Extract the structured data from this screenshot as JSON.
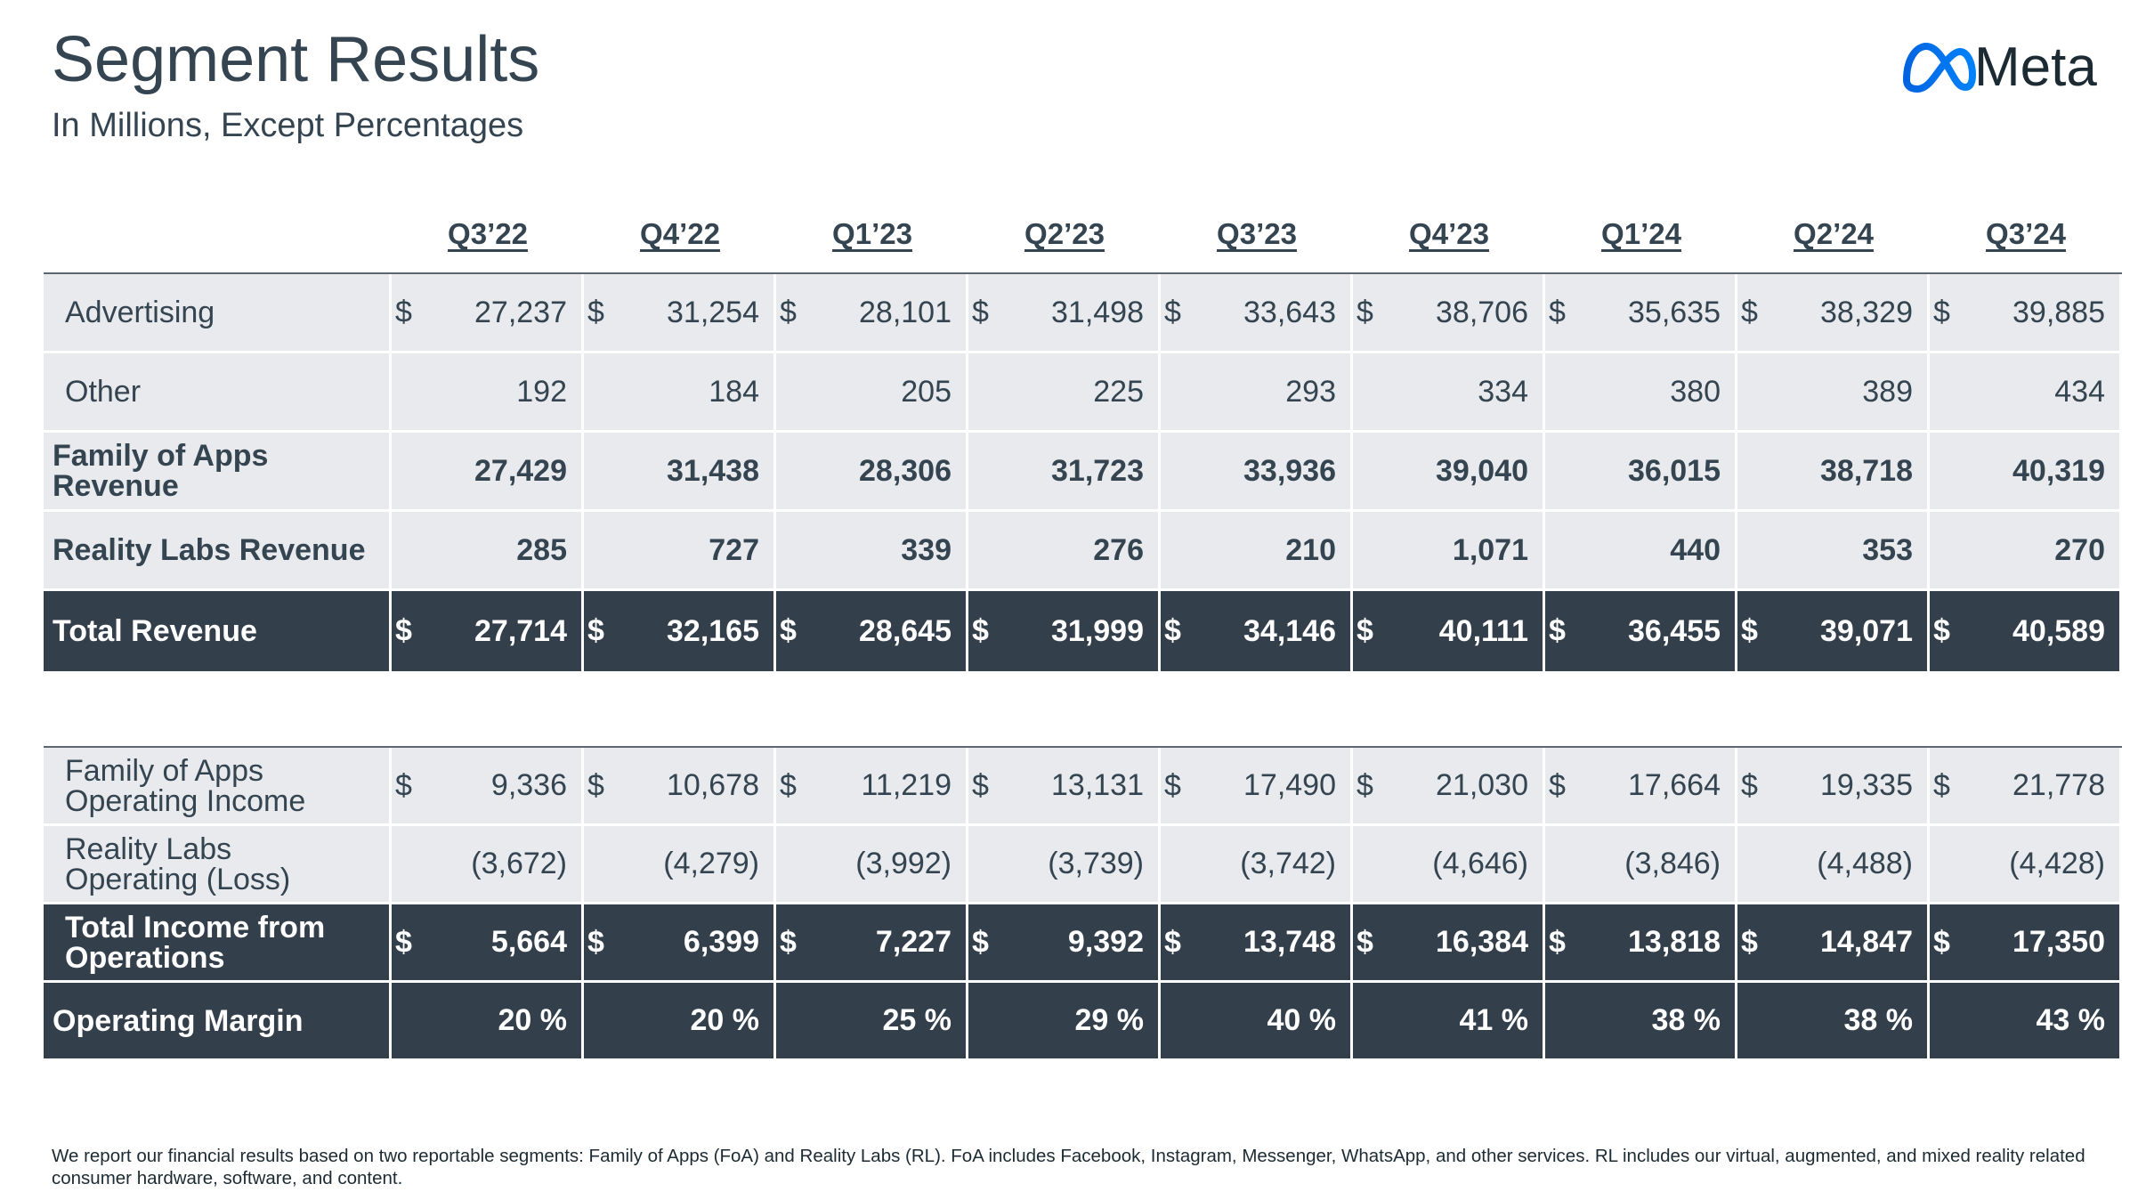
{
  "header": {
    "title": "Segment Results",
    "subtitle": "In Millions, Except Percentages",
    "logo_text": "Meta"
  },
  "table": {
    "columns": [
      "Q3’22",
      "Q4’22",
      "Q1’23",
      "Q2’23",
      "Q3’23",
      "Q4’23",
      "Q1’24",
      "Q2’24",
      "Q3’24"
    ],
    "sections": [
      {
        "rows": [
          {
            "label": "Advertising",
            "currency_symbol": "$",
            "values": [
              "27,237",
              "31,254",
              "28,101",
              "31,498",
              "33,643",
              "38,706",
              "35,635",
              "38,329",
              "39,885"
            ]
          },
          {
            "label": "Other",
            "values": [
              "192",
              "184",
              "205",
              "225",
              "293",
              "334",
              "380",
              "389",
              "434"
            ]
          },
          {
            "label": "Family of Apps\nRevenue",
            "values": [
              "27,429",
              "31,438",
              "28,306",
              "31,723",
              "33,936",
              "39,040",
              "36,015",
              "38,718",
              "40,319"
            ]
          },
          {
            "label": "Reality Labs Revenue",
            "values": [
              "285",
              "727",
              "339",
              "276",
              "210",
              "1,071",
              "440",
              "353",
              "270"
            ]
          },
          {
            "label": "Total Revenue",
            "currency_symbol": "$",
            "values": [
              "27,714",
              "32,165",
              "28,645",
              "31,999",
              "34,146",
              "40,111",
              "36,455",
              "39,071",
              "40,589"
            ]
          }
        ]
      },
      {
        "rows": [
          {
            "label": "Family of Apps\nOperating Income",
            "currency_symbol": "$",
            "values": [
              "9,336",
              "10,678",
              "11,219",
              "13,131",
              "17,490",
              "21,030",
              "17,664",
              "19,335",
              "21,778"
            ]
          },
          {
            "label": "Reality Labs\nOperating (Loss)",
            "values": [
              "(3,672)",
              "(4,279)",
              "(3,992)",
              "(3,739)",
              "(3,742)",
              "(4,646)",
              "(3,846)",
              "(4,488)",
              "(4,428)"
            ]
          },
          {
            "label": "Total Income from\nOperations",
            "currency_symbol": "$",
            "values": [
              "5,664",
              "6,399",
              "7,227",
              "9,392",
              "13,748",
              "16,384",
              "13,818",
              "14,847",
              "17,350"
            ]
          },
          {
            "label": "Operating Margin",
            "values": [
              "20 %",
              "20 %",
              "25 %",
              "29 %",
              "40 %",
              "41 %",
              "38 %",
              "38 %",
              "43 %"
            ]
          }
        ]
      }
    ]
  },
  "footnote": "We report our financial results based on two reportable segments: Family of Apps (FoA) and Reality Labs (RL). FoA includes Facebook, Instagram, Messenger, WhatsApp, and other services. RL includes our virtual, augmented, and mixed reality related consumer hardware, software, and content."
}
